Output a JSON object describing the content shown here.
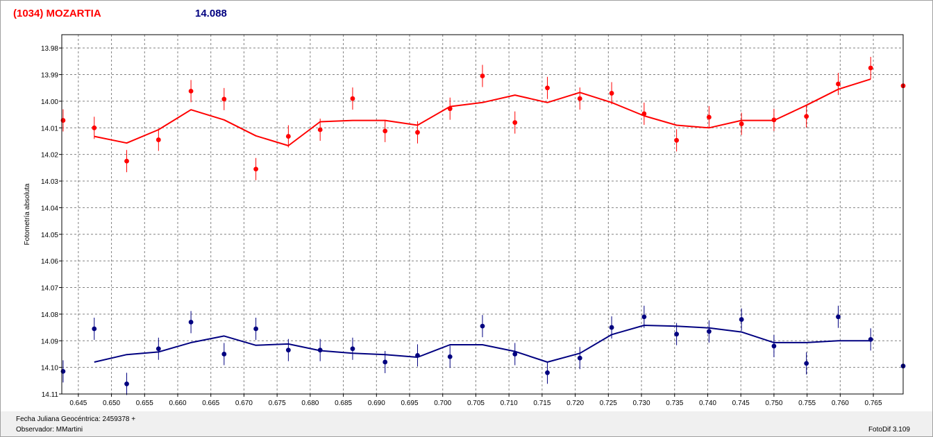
{
  "header": {
    "object_title": "(1034) MOZARTIA",
    "reference_value": "14.088"
  },
  "footer": {
    "date_label": "Fecha Juliana Geocéntrica: 2459378 +",
    "observer_label": "Observador: MMartini",
    "software_label": "FotoDif 3.109"
  },
  "colors": {
    "series_red": "#ff0000",
    "series_blue": "#000080",
    "grid": "#808080"
  },
  "chart_data": {
    "type": "scatter",
    "xlabel": "",
    "ylabel": "Fotometría absoluta",
    "xlim": [
      0.6425,
      0.7695
    ],
    "ylim": [
      14.11,
      13.975
    ],
    "y_inverted": true,
    "grid": true,
    "x_ticks": [
      "0.645",
      "0.650",
      "0.655",
      "0.660",
      "0.665",
      "0.670",
      "0.675",
      "0.680",
      "0.685",
      "0.690",
      "0.695",
      "0.700",
      "0.705",
      "0.710",
      "0.715",
      "0.720",
      "0.725",
      "0.730",
      "0.735",
      "0.740",
      "0.745",
      "0.750",
      "0.755",
      "0.760",
      "0.765"
    ],
    "y_ticks": [
      "13.98",
      "13.99",
      "14.00",
      "14.01",
      "14.02",
      "14.03",
      "14.04",
      "14.05",
      "14.06",
      "14.07",
      "14.08",
      "14.09",
      "14.10",
      "14.11"
    ],
    "series": [
      {
        "color": "#ff0000",
        "points": [
          [
            0.6427,
            14.0072
          ],
          [
            0.6474,
            14.01
          ],
          [
            0.6523,
            14.0225
          ],
          [
            0.6571,
            14.0145
          ],
          [
            0.662,
            13.9962
          ],
          [
            0.667,
            13.9992
          ],
          [
            0.6718,
            14.0255
          ],
          [
            0.6767,
            14.0132
          ],
          [
            0.6815,
            14.0107
          ],
          [
            0.6864,
            13.999
          ],
          [
            0.6913,
            14.0112
          ],
          [
            0.6962,
            14.0117
          ],
          [
            0.7011,
            14.0028
          ],
          [
            0.706,
            13.9905
          ],
          [
            0.7109,
            14.008
          ],
          [
            0.7158,
            13.995
          ],
          [
            0.7207,
            13.999
          ],
          [
            0.7255,
            13.997
          ],
          [
            0.7304,
            14.0047
          ],
          [
            0.7353,
            14.0147
          ],
          [
            0.7402,
            14.006
          ],
          [
            0.7451,
            14.0085
          ],
          [
            0.75,
            14.007
          ],
          [
            0.7549,
            14.0057
          ],
          [
            0.7597,
            13.9935
          ],
          [
            0.7646,
            13.9875
          ],
          [
            0.7695,
            13.9942
          ]
        ],
        "fit": [
          [
            0.6474,
            14.0132
          ],
          [
            0.6523,
            14.0157
          ],
          [
            0.6571,
            14.0107
          ],
          [
            0.662,
            14.0032
          ],
          [
            0.667,
            14.007
          ],
          [
            0.6718,
            14.013
          ],
          [
            0.6767,
            14.0167
          ],
          [
            0.6815,
            14.0077
          ],
          [
            0.6864,
            14.0072
          ],
          [
            0.6913,
            14.0072
          ],
          [
            0.6962,
            14.009
          ],
          [
            0.7011,
            14.002
          ],
          [
            0.706,
            14.0005
          ],
          [
            0.7109,
            13.9977
          ],
          [
            0.7158,
            14.0005
          ],
          [
            0.7207,
            13.9967
          ],
          [
            0.7255,
            14.0005
          ],
          [
            0.7304,
            14.0055
          ],
          [
            0.7353,
            14.009
          ],
          [
            0.7402,
            14.01
          ],
          [
            0.7451,
            14.0072
          ],
          [
            0.75,
            14.0072
          ],
          [
            0.7549,
            14.0015
          ],
          [
            0.7597,
            13.9955
          ],
          [
            0.7646,
            13.9917
          ]
        ]
      },
      {
        "color": "#000080",
        "points": [
          [
            0.6427,
            14.1015
          ],
          [
            0.6474,
            14.0855
          ],
          [
            0.6523,
            14.1062
          ],
          [
            0.6571,
            14.093
          ],
          [
            0.662,
            14.083
          ],
          [
            0.667,
            14.095
          ],
          [
            0.6718,
            14.0855
          ],
          [
            0.6767,
            14.0935
          ],
          [
            0.6815,
            14.0935
          ],
          [
            0.6864,
            14.093
          ],
          [
            0.6913,
            14.098
          ],
          [
            0.6962,
            14.0955
          ],
          [
            0.7011,
            14.096
          ],
          [
            0.706,
            14.0845
          ],
          [
            0.7109,
            14.095
          ],
          [
            0.7158,
            14.102
          ],
          [
            0.7207,
            14.0965
          ],
          [
            0.7255,
            14.085
          ],
          [
            0.7304,
            14.081
          ],
          [
            0.7353,
            14.0875
          ],
          [
            0.7402,
            14.0865
          ],
          [
            0.7451,
            14.082
          ],
          [
            0.75,
            14.092
          ],
          [
            0.7549,
            14.0985
          ],
          [
            0.7597,
            14.081
          ],
          [
            0.7646,
            14.0895
          ],
          [
            0.7695,
            14.0995
          ]
        ],
        "fit": [
          [
            0.6474,
            14.098
          ],
          [
            0.6523,
            14.0952
          ],
          [
            0.6571,
            14.0942
          ],
          [
            0.662,
            14.0907
          ],
          [
            0.667,
            14.0882
          ],
          [
            0.6718,
            14.0917
          ],
          [
            0.6767,
            14.0912
          ],
          [
            0.6815,
            14.0937
          ],
          [
            0.6864,
            14.0947
          ],
          [
            0.6913,
            14.0952
          ],
          [
            0.6962,
            14.0962
          ],
          [
            0.7011,
            14.0915
          ],
          [
            0.706,
            14.0915
          ],
          [
            0.7109,
            14.094
          ],
          [
            0.7158,
            14.098
          ],
          [
            0.7207,
            14.0947
          ],
          [
            0.7255,
            14.0877
          ],
          [
            0.7304,
            14.0842
          ],
          [
            0.7353,
            14.0845
          ],
          [
            0.7402,
            14.0852
          ],
          [
            0.7451,
            14.0867
          ],
          [
            0.75,
            14.0907
          ],
          [
            0.7549,
            14.0907
          ],
          [
            0.7597,
            14.09
          ],
          [
            0.7646,
            14.09
          ]
        ]
      }
    ]
  }
}
